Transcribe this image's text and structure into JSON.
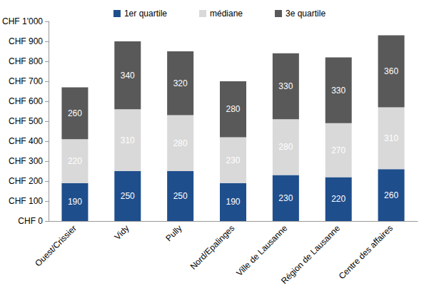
{
  "chart_data": {
    "type": "bar",
    "stacked": true,
    "data_labels": true,
    "legend": "top",
    "grid": false,
    "categories": [
      "Ouest/Crissier",
      "Vidy",
      "Pully",
      "Nord/Epalinges",
      "Ville de Lausanne",
      "Région de Lausanne",
      "Centre des affaires"
    ],
    "series": [
      {
        "name": "1er quartile",
        "color": "#1f4e8c",
        "values": [
          190,
          250,
          250,
          190,
          230,
          220,
          260
        ]
      },
      {
        "name": "médiane",
        "color": "#d9d9d9",
        "values": [
          220,
          310,
          280,
          230,
          280,
          270,
          310
        ]
      },
      {
        "name": "3e quartile",
        "color": "#595959",
        "values": [
          260,
          340,
          320,
          280,
          330,
          330,
          360
        ]
      }
    ],
    "ylim": [
      0,
      1000
    ],
    "yticks": [
      {
        "value": 0,
        "label": "CHF 0"
      },
      {
        "value": 100,
        "label": "CHF 100"
      },
      {
        "value": 200,
        "label": "CHF 200"
      },
      {
        "value": 300,
        "label": "CHF 300"
      },
      {
        "value": 400,
        "label": "CHF 400"
      },
      {
        "value": 500,
        "label": "CHF 500"
      },
      {
        "value": 600,
        "label": "CHF 600"
      },
      {
        "value": 700,
        "label": "CHF 700"
      },
      {
        "value": 800,
        "label": "CHF 800"
      },
      {
        "value": 900,
        "label": "CHF 900"
      },
      {
        "value": 1000,
        "label": "CHF 1'000"
      }
    ]
  }
}
